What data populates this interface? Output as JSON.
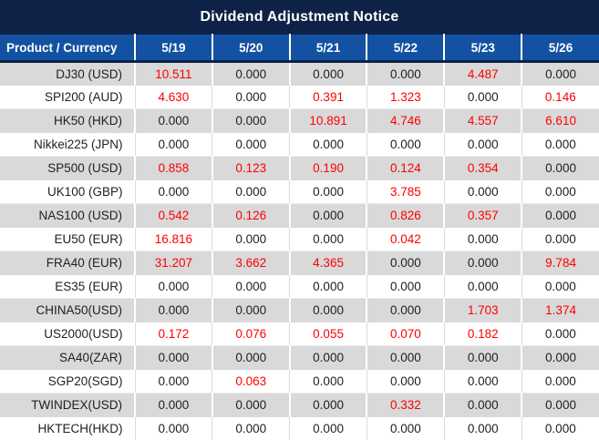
{
  "title": "Dividend Adjustment Notice",
  "colors": {
    "title_bar_bg": "#0e2247",
    "header_bg": "#1352a2",
    "header_text": "#ffffff",
    "row_alt_bg": "#d9d9d9",
    "value_positive_red": "#fe0000",
    "value_default": "#212121"
  },
  "table": {
    "product_header": "Product / Currency",
    "date_headers": [
      "5/19",
      "5/20",
      "5/21",
      "5/22",
      "5/23",
      "5/26"
    ],
    "rows": [
      {
        "product": "DJ30 (USD)",
        "values": [
          "10.511",
          "0.000",
          "0.000",
          "0.000",
          "4.487",
          "0.000"
        ],
        "red": [
          true,
          false,
          false,
          false,
          true,
          false
        ]
      },
      {
        "product": "SPI200 (AUD)",
        "values": [
          "4.630",
          "0.000",
          "0.391",
          "1.323",
          "0.000",
          "0.146"
        ],
        "red": [
          true,
          false,
          true,
          true,
          false,
          true
        ]
      },
      {
        "product": "HK50 (HKD)",
        "values": [
          "0.000",
          "0.000",
          "10.891",
          "4.746",
          "4.557",
          "6.610"
        ],
        "red": [
          false,
          false,
          true,
          true,
          true,
          true
        ]
      },
      {
        "product": "Nikkei225 (JPN)",
        "values": [
          "0.000",
          "0.000",
          "0.000",
          "0.000",
          "0.000",
          "0.000"
        ],
        "red": [
          false,
          false,
          false,
          false,
          false,
          false
        ]
      },
      {
        "product": "SP500 (USD)",
        "values": [
          "0.858",
          "0.123",
          "0.190",
          "0.124",
          "0.354",
          "0.000"
        ],
        "red": [
          true,
          true,
          true,
          true,
          true,
          false
        ]
      },
      {
        "product": "UK100 (GBP)",
        "values": [
          "0.000",
          "0.000",
          "0.000",
          "3.785",
          "0.000",
          "0.000"
        ],
        "red": [
          false,
          false,
          false,
          true,
          false,
          false
        ]
      },
      {
        "product": "NAS100 (USD)",
        "values": [
          "0.542",
          "0.126",
          "0.000",
          "0.826",
          "0.357",
          "0.000"
        ],
        "red": [
          true,
          true,
          false,
          true,
          true,
          false
        ]
      },
      {
        "product": "EU50 (EUR)",
        "values": [
          "16.816",
          "0.000",
          "0.000",
          "0.042",
          "0.000",
          "0.000"
        ],
        "red": [
          true,
          false,
          false,
          true,
          false,
          false
        ]
      },
      {
        "product": "FRA40 (EUR)",
        "values": [
          "31.207",
          "3.662",
          "4.365",
          "0.000",
          "0.000",
          "9.784"
        ],
        "red": [
          true,
          true,
          true,
          false,
          false,
          true
        ]
      },
      {
        "product": "ES35 (EUR)",
        "values": [
          "0.000",
          "0.000",
          "0.000",
          "0.000",
          "0.000",
          "0.000"
        ],
        "red": [
          false,
          false,
          false,
          false,
          false,
          false
        ]
      },
      {
        "product": "CHINA50(USD)",
        "values": [
          "0.000",
          "0.000",
          "0.000",
          "0.000",
          "1.703",
          "1.374"
        ],
        "red": [
          false,
          false,
          false,
          false,
          true,
          true
        ]
      },
      {
        "product": "US2000(USD)",
        "values": [
          "0.172",
          "0.076",
          "0.055",
          "0.070",
          "0.182",
          "0.000"
        ],
        "red": [
          true,
          true,
          true,
          true,
          true,
          false
        ]
      },
      {
        "product": "SA40(ZAR)",
        "values": [
          "0.000",
          "0.000",
          "0.000",
          "0.000",
          "0.000",
          "0.000"
        ],
        "red": [
          false,
          false,
          false,
          false,
          false,
          false
        ]
      },
      {
        "product": "SGP20(SGD)",
        "values": [
          "0.000",
          "0.063",
          "0.000",
          "0.000",
          "0.000",
          "0.000"
        ],
        "red": [
          false,
          true,
          false,
          false,
          false,
          false
        ]
      },
      {
        "product": "TWINDEX(USD)",
        "values": [
          "0.000",
          "0.000",
          "0.000",
          "0.332",
          "0.000",
          "0.000"
        ],
        "red": [
          false,
          false,
          false,
          true,
          false,
          false
        ]
      },
      {
        "product": "HKTECH(HKD)",
        "values": [
          "0.000",
          "0.000",
          "0.000",
          "0.000",
          "0.000",
          "0.000"
        ],
        "red": [
          false,
          false,
          false,
          false,
          false,
          false
        ]
      }
    ]
  }
}
